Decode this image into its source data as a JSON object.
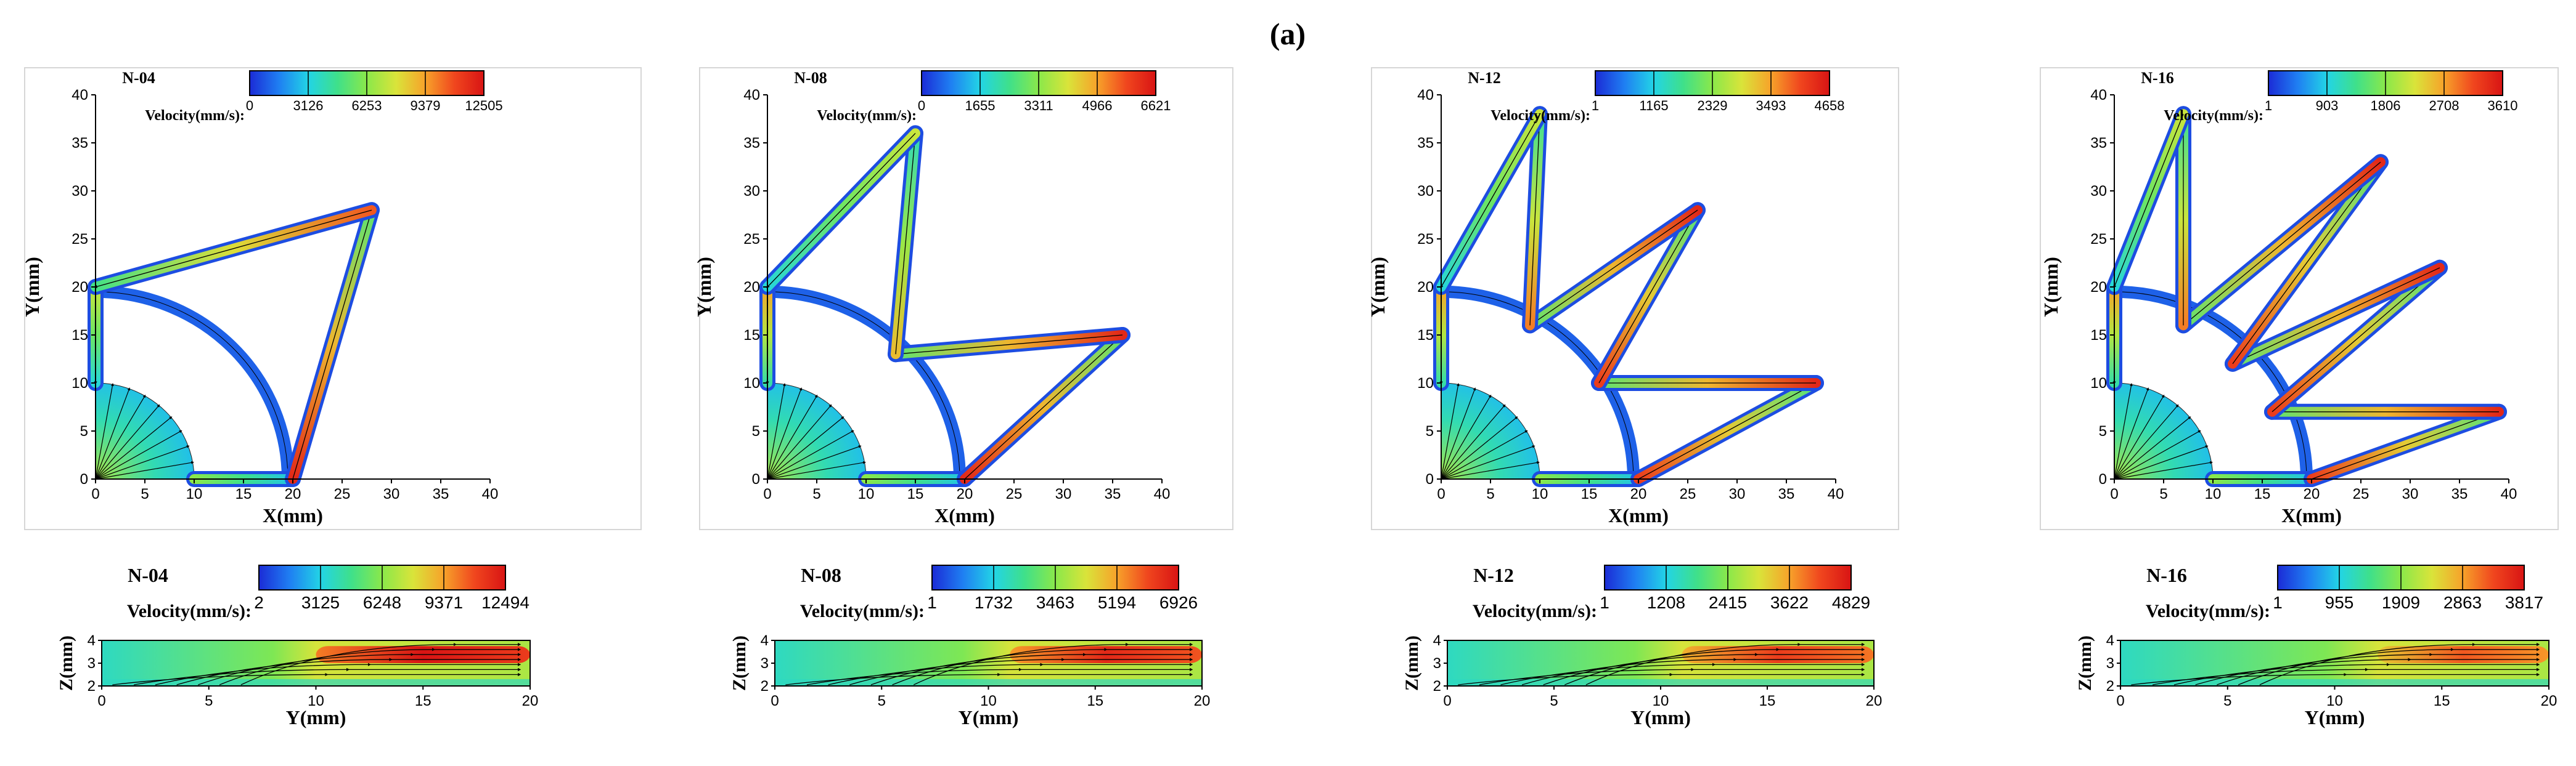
{
  "figure": {
    "label": "(a)",
    "colormap": [
      "#1b2bd6",
      "#1f7ff2",
      "#22d4e6",
      "#3fe08a",
      "#8ae84a",
      "#d9e43a",
      "#f7a22a",
      "#f0461e",
      "#d81414"
    ]
  },
  "chart_data": [
    {
      "type": "heatmap",
      "view": "top",
      "title": "N-04",
      "legend_label": "Velocity(mm/s):",
      "ticks": [
        "0",
        "3126",
        "6253",
        "9379",
        "12505"
      ],
      "xlabel": "X(mm)",
      "ylabel": "Y(mm)",
      "xlim": [
        0,
        40
      ],
      "ylim": [
        0,
        40
      ],
      "xticks": [
        0,
        5,
        10,
        15,
        20,
        25,
        30,
        35,
        40
      ],
      "yticks": [
        0,
        5,
        10,
        15,
        20,
        25,
        30,
        35,
        40
      ],
      "channels": [
        [
          [
            0,
            20
          ],
          [
            0,
            10
          ]
        ],
        [
          [
            10,
            0
          ],
          [
            20,
            0
          ]
        ],
        [
          [
            20,
            0
          ],
          [
            28,
            28
          ]
        ],
        [
          [
            28,
            28
          ],
          [
            0,
            20
          ]
        ]
      ],
      "arc_radius": 19.5,
      "hot": [
        0.6,
        0.5,
        0.95,
        0.85
      ]
    },
    {
      "type": "heatmap",
      "view": "top",
      "title": "N-08",
      "legend_label": "Velocity(mm/s):",
      "ticks": [
        "0",
        "1655",
        "3311",
        "4966",
        "6621"
      ],
      "xlabel": "X(mm)",
      "ylabel": "Y(mm)",
      "xlim": [
        0,
        40
      ],
      "ylim": [
        0,
        40
      ],
      "xticks": [
        0,
        5,
        10,
        15,
        20,
        25,
        30,
        35,
        40
      ],
      "yticks": [
        0,
        5,
        10,
        15,
        20,
        25,
        30,
        35,
        40
      ],
      "channels": [
        [
          [
            0,
            20
          ],
          [
            0,
            10
          ]
        ],
        [
          [
            10,
            0
          ],
          [
            20,
            0
          ]
        ],
        [
          [
            20,
            0
          ],
          [
            36,
            15
          ]
        ],
        [
          [
            36,
            15
          ],
          [
            13,
            13
          ]
        ],
        [
          [
            13,
            13
          ],
          [
            15,
            36
          ]
        ],
        [
          [
            15,
            36
          ],
          [
            0,
            20
          ]
        ]
      ],
      "arc_radius": 19.5,
      "hot": [
        0.75,
        0.5,
        0.95,
        0.95,
        0.7,
        0.6
      ]
    },
    {
      "type": "heatmap",
      "view": "top",
      "title": "N-12",
      "legend_label": "Velocity(mm/s):",
      "ticks": [
        "1",
        "1165",
        "2329",
        "3493",
        "4658"
      ],
      "xlabel": "X(mm)",
      "ylabel": "Y(mm)",
      "xlim": [
        0,
        40
      ],
      "ylim": [
        0,
        40
      ],
      "xticks": [
        0,
        5,
        10,
        15,
        20,
        25,
        30,
        35,
        40
      ],
      "yticks": [
        0,
        5,
        10,
        15,
        20,
        25,
        30,
        35,
        40
      ],
      "channels": [
        [
          [
            0,
            20
          ],
          [
            0,
            10
          ]
        ],
        [
          [
            10,
            0
          ],
          [
            20,
            0
          ]
        ],
        [
          [
            20,
            0
          ],
          [
            38,
            10
          ]
        ],
        [
          [
            38,
            10
          ],
          [
            16,
            10
          ]
        ],
        [
          [
            16,
            10
          ],
          [
            26,
            28
          ]
        ],
        [
          [
            26,
            28
          ],
          [
            9,
            16
          ]
        ],
        [
          [
            9,
            16
          ],
          [
            10,
            38
          ]
        ],
        [
          [
            10,
            38
          ],
          [
            0,
            20
          ]
        ]
      ],
      "arc_radius": 19.5,
      "hot": [
        0.75,
        0.5,
        0.9,
        0.95,
        0.9,
        0.95,
        0.8,
        0.6
      ]
    },
    {
      "type": "heatmap",
      "view": "top",
      "title": "N-16",
      "legend_label": "Velocity(mm/s):",
      "ticks": [
        "1",
        "903",
        "1806",
        "2708",
        "3610"
      ],
      "xlabel": "X(mm)",
      "ylabel": "Y(mm)",
      "xlim": [
        0,
        40
      ],
      "ylim": [
        0,
        40
      ],
      "xticks": [
        0,
        5,
        10,
        15,
        20,
        25,
        30,
        35,
        40
      ],
      "yticks": [
        0,
        5,
        10,
        15,
        20,
        25,
        30,
        35,
        40
      ],
      "channels": [
        [
          [
            0,
            20
          ],
          [
            0,
            10
          ]
        ],
        [
          [
            10,
            0
          ],
          [
            20,
            0
          ]
        ],
        [
          [
            20,
            0
          ],
          [
            39,
            7
          ]
        ],
        [
          [
            39,
            7
          ],
          [
            16,
            7
          ]
        ],
        [
          [
            16,
            7
          ],
          [
            33,
            22
          ]
        ],
        [
          [
            33,
            22
          ],
          [
            12,
            12
          ]
        ],
        [
          [
            12,
            12
          ],
          [
            27,
            33
          ]
        ],
        [
          [
            27,
            33
          ],
          [
            7,
            16
          ]
        ],
        [
          [
            7,
            16
          ],
          [
            7,
            38
          ]
        ],
        [
          [
            7,
            38
          ],
          [
            0,
            20
          ]
        ]
      ],
      "arc_radius": 19.5,
      "hot": [
        0.75,
        0.5,
        0.9,
        0.95,
        0.9,
        0.95,
        0.9,
        0.95,
        0.8,
        0.6
      ]
    },
    {
      "type": "heatmap",
      "view": "side",
      "title": "N-04",
      "legend_label": "Velocity(mm/s):",
      "ticks": [
        "2",
        "3125",
        "6248",
        "9371",
        "12494"
      ],
      "xlabel": "Y(mm)",
      "ylabel": "Z(mm)",
      "xlim": [
        0,
        20
      ],
      "ylim": [
        2,
        4
      ],
      "xticks": [
        0,
        5,
        10,
        15,
        20
      ],
      "yticks": [
        2,
        3,
        4
      ],
      "hot_start": 0.5,
      "hot_level": 1.0
    },
    {
      "type": "heatmap",
      "view": "side",
      "title": "N-08",
      "legend_label": "Velocity(mm/s):",
      "ticks": [
        "1",
        "1732",
        "3463",
        "5194",
        "6926"
      ],
      "xlabel": "Y(mm)",
      "ylabel": "Z(mm)",
      "xlim": [
        0,
        20
      ],
      "ylim": [
        2,
        4
      ],
      "xticks": [
        0,
        5,
        10,
        15,
        20
      ],
      "yticks": [
        2,
        3,
        4
      ],
      "hot_start": 0.55,
      "hot_level": 0.95
    },
    {
      "type": "heatmap",
      "view": "side",
      "title": "N-12",
      "legend_label": "Velocity(mm/s):",
      "ticks": [
        "1",
        "1208",
        "2415",
        "3622",
        "4829"
      ],
      "xlabel": "Y(mm)",
      "ylabel": "Z(mm)",
      "xlim": [
        0,
        20
      ],
      "ylim": [
        2,
        4
      ],
      "xticks": [
        0,
        5,
        10,
        15,
        20
      ],
      "yticks": [
        2,
        3,
        4
      ],
      "hot_start": 0.55,
      "hot_level": 0.9
    },
    {
      "type": "heatmap",
      "view": "side",
      "title": "N-16",
      "legend_label": "Velocity(mm/s):",
      "ticks": [
        "1",
        "955",
        "1909",
        "2863",
        "3817"
      ],
      "xlabel": "Y(mm)",
      "ylabel": "Z(mm)",
      "xlim": [
        0,
        20
      ],
      "ylim": [
        2,
        4
      ],
      "xticks": [
        0,
        5,
        10,
        15,
        20
      ],
      "yticks": [
        2,
        3,
        4
      ],
      "hot_start": 0.6,
      "hot_level": 0.85
    }
  ]
}
